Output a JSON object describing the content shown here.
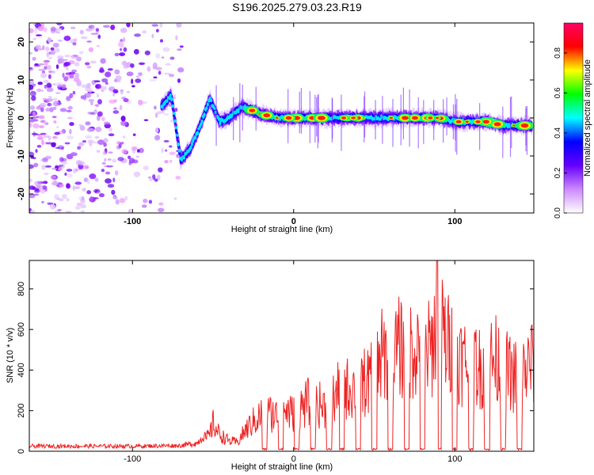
{
  "title": "S196.2025.279.03.23.R19",
  "chart_data": [
    {
      "type": "heatmap",
      "xlabel": "Height of straight line (km)",
      "ylabel": "Frequency (Hz)",
      "xlim": [
        -164,
        149
      ],
      "ylim": [
        -25,
        25
      ],
      "xticks": [
        -100,
        0,
        100
      ],
      "yticks": [
        -20,
        -10,
        0,
        10,
        20
      ],
      "colorbar": {
        "label": "Normalized spectral amplitude",
        "range": [
          0,
          0.95
        ],
        "ticks": [
          0.0,
          0.2,
          0.4,
          0.6,
          0.8
        ],
        "tick_labels": [
          "0.0",
          "0.2",
          "0.4",
          "0.6",
          "0.8"
        ],
        "colors": [
          "#ffffff",
          "#cc88ff",
          "#6600ff",
          "#0000ff",
          "#00ffff",
          "#00ff00",
          "#ffff00",
          "#ff0000",
          "#ff0066"
        ]
      },
      "ridge": {
        "x": [
          -82,
          -76,
          -70,
          -64,
          -58,
          -52,
          -46,
          -40,
          -32,
          -26,
          -20,
          -10,
          0,
          10,
          20,
          30,
          40,
          50,
          60,
          70,
          80,
          90,
          100,
          110,
          120,
          130,
          140,
          148
        ],
        "y": [
          3,
          6,
          -11,
          -8,
          -2,
          5,
          -1,
          0,
          3,
          2,
          1,
          0,
          0,
          0,
          0,
          0,
          0,
          0,
          0,
          0,
          0,
          0,
          -1,
          -1,
          -1,
          -2,
          -2,
          -2
        ]
      }
    },
    {
      "type": "line",
      "xlabel": "Height of straight line (km)",
      "ylabel": "SNR (10 * v/v)",
      "xlim": [
        -164,
        149
      ],
      "ylim": [
        0,
        940
      ],
      "xticks": [
        -100,
        0,
        100
      ],
      "yticks": [
        0,
        200,
        400,
        600,
        800
      ],
      "series": [
        {
          "name": "SNR",
          "color": "#ee2222",
          "x": [
            -164,
            -100,
            -70,
            -60,
            -52,
            -50,
            -47,
            -44,
            -40,
            -35,
            -30,
            -25,
            -20,
            -15,
            -10,
            -5,
            0,
            5,
            10,
            15,
            20,
            25,
            30,
            35,
            40,
            45,
            50,
            55,
            60,
            65,
            70,
            75,
            80,
            85,
            90,
            95,
            100,
            105,
            110,
            115,
            120,
            125,
            130,
            135,
            140,
            145,
            149
          ],
          "values": [
            25,
            25,
            28,
            40,
            110,
            190,
            130,
            100,
            70,
            60,
            140,
            200,
            250,
            260,
            240,
            280,
            250,
            300,
            340,
            320,
            300,
            360,
            440,
            420,
            460,
            470,
            500,
            650,
            620,
            700,
            660,
            720,
            700,
            680,
            940,
            720,
            700,
            600,
            650,
            560,
            600,
            620,
            580,
            520,
            500,
            560,
            620
          ]
        }
      ]
    }
  ]
}
